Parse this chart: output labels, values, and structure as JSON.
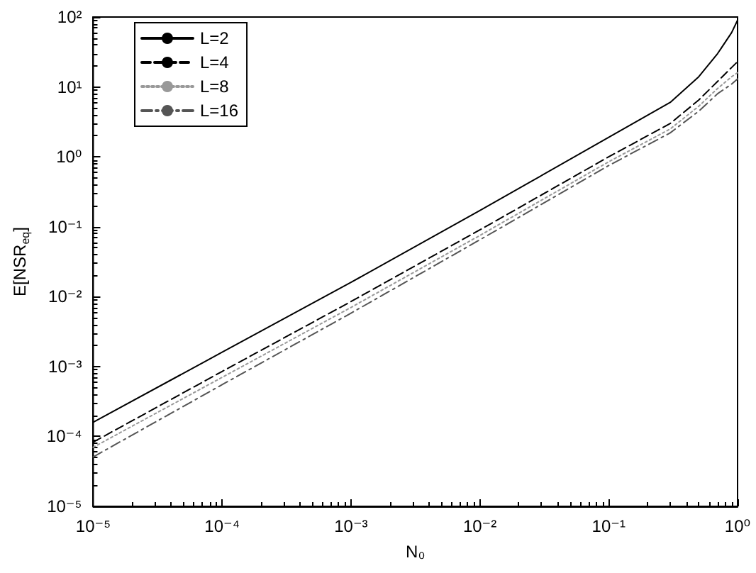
{
  "chart_data": {
    "type": "line",
    "xlabel": "N₀",
    "ylabel": "E[NSR$_{eq}$]",
    "log": "xy",
    "grid": false,
    "legend": "top left",
    "marker": "none",
    "xlim": [
      1e-05,
      1
    ],
    "ylim": [
      1e-05,
      100
    ],
    "xticks": [
      {
        "value": 1e-05,
        "label": "10⁻⁵"
      },
      {
        "value": 0.0001,
        "label": "10⁻⁴"
      },
      {
        "value": 0.001,
        "label": "10⁻³"
      },
      {
        "value": 0.01,
        "label": "10⁻²"
      },
      {
        "value": 0.1,
        "label": "10⁻¹"
      },
      {
        "value": 1,
        "label": "10⁰"
      }
    ],
    "yticks": [
      {
        "value": 1e-05,
        "label": "10⁻⁵"
      },
      {
        "value": 0.0001,
        "label": "10⁻⁴"
      },
      {
        "value": 0.001,
        "label": "10⁻³"
      },
      {
        "value": 0.01,
        "label": "10⁻²"
      },
      {
        "value": 0.1,
        "label": "10⁻¹"
      },
      {
        "value": 1,
        "label": "10⁰"
      },
      {
        "value": 10,
        "label": "10¹"
      },
      {
        "value": 100,
        "label": "10²"
      }
    ],
    "x": [
      1e-05,
      0.0001,
      0.001,
      0.01,
      0.1,
      0.3,
      0.5,
      0.7,
      0.9,
      1
    ],
    "series": [
      {
        "name": "L=2",
        "color": "#000000",
        "line_style": "solid",
        "values": [
          0.00016,
          0.0016,
          0.016,
          0.17,
          1.9,
          6,
          14,
          30,
          60,
          90
        ]
      },
      {
        "name": "L=4",
        "color": "#000000",
        "line_style": "dashed",
        "values": [
          8.3e-05,
          0.00085,
          0.0085,
          0.09,
          1.0,
          3.0,
          6.5,
          12,
          19,
          23
        ]
      },
      {
        "name": "L=8",
        "color": "#999999",
        "line_style": "dotted",
        "values": [
          7e-05,
          0.0007,
          0.007,
          0.075,
          0.85,
          2.5,
          5.3,
          9.5,
          14,
          16
        ]
      },
      {
        "name": "L=16",
        "color": "#555555",
        "line_style": "dashdot",
        "values": [
          5.1e-05,
          0.00055,
          0.0058,
          0.065,
          0.75,
          2.2,
          4.5,
          8,
          11,
          13
        ]
      }
    ]
  }
}
